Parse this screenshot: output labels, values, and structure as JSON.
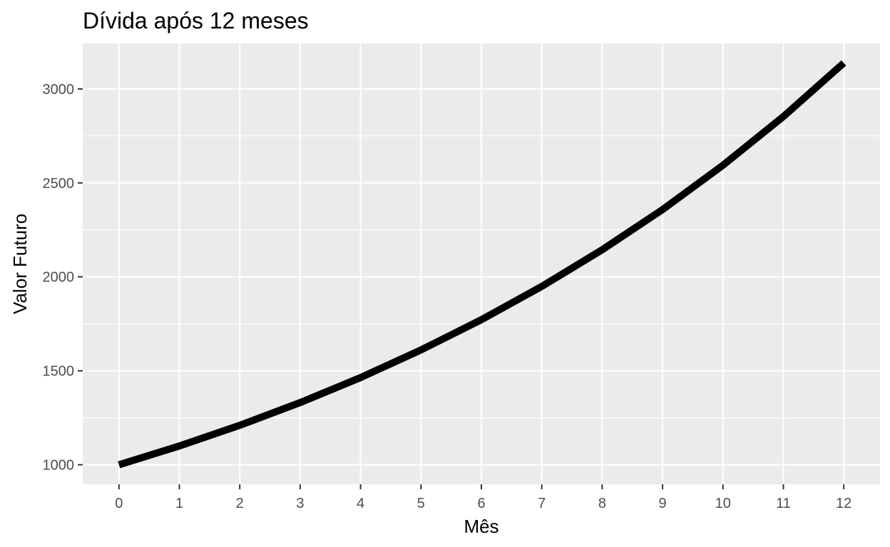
{
  "colors": {
    "panel_background": "#ebebeb",
    "grid": "#ffffff",
    "line": "#000000",
    "tick_text": "#4d4d4d",
    "tick_mark": "#333333"
  },
  "chart_data": {
    "type": "line",
    "title": "Dívida após 12 meses",
    "xlabel": "Mês",
    "ylabel": "Valor Futuro",
    "x": [
      0,
      1,
      2,
      3,
      4,
      5,
      6,
      7,
      8,
      9,
      10,
      11,
      12
    ],
    "series": [
      {
        "values": [
          1000,
          1100,
          1210,
          1331,
          1464,
          1611,
          1772,
          1949,
          2144,
          2358,
          2594,
          2853,
          3138
        ]
      }
    ],
    "xlim": [
      -0.6,
      12.6
    ],
    "ylim": [
      896,
      3242
    ],
    "x_ticks": [
      0,
      1,
      2,
      3,
      4,
      5,
      6,
      7,
      8,
      9,
      10,
      11,
      12
    ],
    "y_ticks": [
      1000,
      1500,
      2000,
      2500,
      3000
    ],
    "x_tick_labels": [
      "0",
      "1",
      "2",
      "3",
      "4",
      "5",
      "6",
      "7",
      "8",
      "9",
      "10",
      "11",
      "12"
    ],
    "y_tick_labels": [
      "1000",
      "1500",
      "2000",
      "2500",
      "3000"
    ],
    "grid": true,
    "legend": "none"
  }
}
